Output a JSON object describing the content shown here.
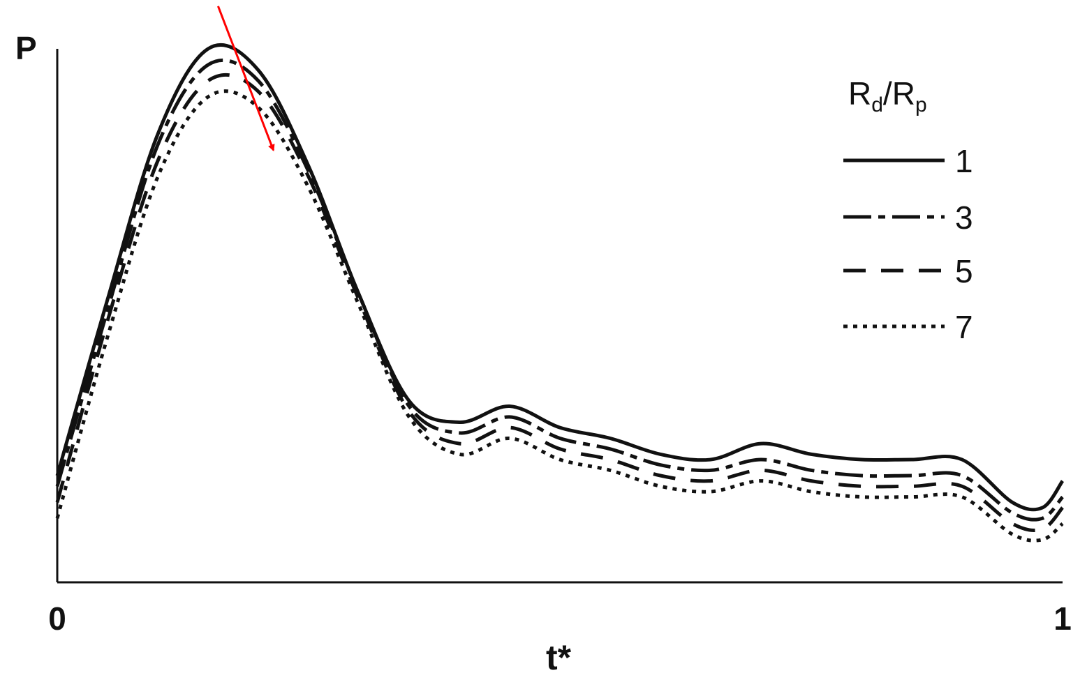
{
  "chart_data": {
    "type": "line",
    "title": "",
    "xlabel": "t*",
    "ylabel": "P",
    "xlim": [
      0,
      1
    ],
    "ylim": [
      0,
      1
    ],
    "x_ticks": [
      "0",
      "1"
    ],
    "grid": false,
    "legend": {
      "placement": "top-right",
      "title_main_1": "R",
      "title_sub_1": "d",
      "title_sep": "/",
      "title_main_2": "R",
      "title_sub_2": "p"
    },
    "annotations": [
      {
        "type": "arrow",
        "color": "#ff0000",
        "from": [
          0.16,
          1.08
        ],
        "to": [
          0.215,
          0.81
        ]
      }
    ],
    "x": [
      0,
      0.05,
      0.1,
      0.15,
      0.2,
      0.25,
      0.3,
      0.35,
      0.4,
      0.45,
      0.5,
      0.55,
      0.6,
      0.65,
      0.7,
      0.75,
      0.8,
      0.85,
      0.9,
      0.95,
      0.98,
      1.0
    ],
    "series": [
      {
        "name": "1",
        "dash": "solid",
        "values": [
          0.2,
          0.53,
          0.84,
          1.0,
          0.96,
          0.78,
          0.54,
          0.34,
          0.3,
          0.33,
          0.29,
          0.27,
          0.24,
          0.23,
          0.26,
          0.24,
          0.23,
          0.23,
          0.23,
          0.15,
          0.14,
          0.19
        ]
      },
      {
        "name": "3",
        "dash": "dash-dot",
        "values": [
          0.18,
          0.51,
          0.82,
          0.97,
          0.94,
          0.77,
          0.54,
          0.33,
          0.28,
          0.31,
          0.27,
          0.25,
          0.22,
          0.21,
          0.23,
          0.21,
          0.2,
          0.2,
          0.2,
          0.13,
          0.12,
          0.16
        ]
      },
      {
        "name": "5",
        "dash": "dash",
        "values": [
          0.15,
          0.49,
          0.79,
          0.94,
          0.92,
          0.76,
          0.53,
          0.32,
          0.26,
          0.29,
          0.25,
          0.23,
          0.2,
          0.19,
          0.21,
          0.19,
          0.18,
          0.18,
          0.18,
          0.11,
          0.1,
          0.14
        ]
      },
      {
        "name": "7",
        "dash": "dot",
        "values": [
          0.12,
          0.46,
          0.76,
          0.91,
          0.89,
          0.74,
          0.52,
          0.31,
          0.24,
          0.27,
          0.23,
          0.21,
          0.18,
          0.17,
          0.19,
          0.17,
          0.16,
          0.16,
          0.16,
          0.09,
          0.08,
          0.11
        ]
      }
    ]
  }
}
